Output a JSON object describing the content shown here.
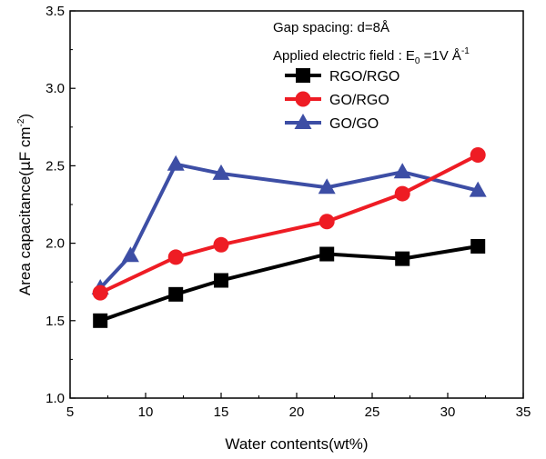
{
  "chart_data": {
    "type": "line",
    "xlabel": "Water contents(wt%)",
    "ylabel_main": "Area capacitance(",
    "ylabel_mu": "μ",
    "ylabel_unit": "F cm",
    "ylabel_exp": "-2",
    "ylabel_close": ")",
    "xlim": [
      5,
      35
    ],
    "ylim": [
      1.0,
      3.5
    ],
    "xticks": [
      "5",
      "10",
      "15",
      "20",
      "25",
      "30",
      "35"
    ],
    "yticks": [
      "1.0",
      "1.5",
      "2.0",
      "2.5",
      "3.0",
      "3.5"
    ],
    "annotations": {
      "gap": "Gap spacing: d=8Å",
      "field_prefix": "Applied electric field : E",
      "field_sub": "0",
      "field_value": " =1V Å",
      "field_exp": "-1"
    },
    "legend_position": "top-right",
    "series": [
      {
        "name": "RGO/RGO",
        "color": "#000000",
        "marker": "square",
        "x": [
          7,
          12,
          15,
          22,
          27,
          32
        ],
        "y": [
          1.5,
          1.67,
          1.76,
          1.93,
          1.9,
          1.98
        ]
      },
      {
        "name": "GO/RGO",
        "color": "#ee1c24",
        "marker": "circle",
        "x": [
          7,
          12,
          15,
          22,
          27,
          32
        ],
        "y": [
          1.68,
          1.91,
          1.99,
          2.14,
          2.32,
          2.57
        ]
      },
      {
        "name": "GO/GO",
        "color": "#3d4ea5",
        "marker": "triangle",
        "x": [
          7,
          9,
          12,
          15,
          22,
          27,
          32
        ],
        "y": [
          1.71,
          1.92,
          2.51,
          2.45,
          2.36,
          2.46,
          2.34
        ]
      }
    ]
  }
}
